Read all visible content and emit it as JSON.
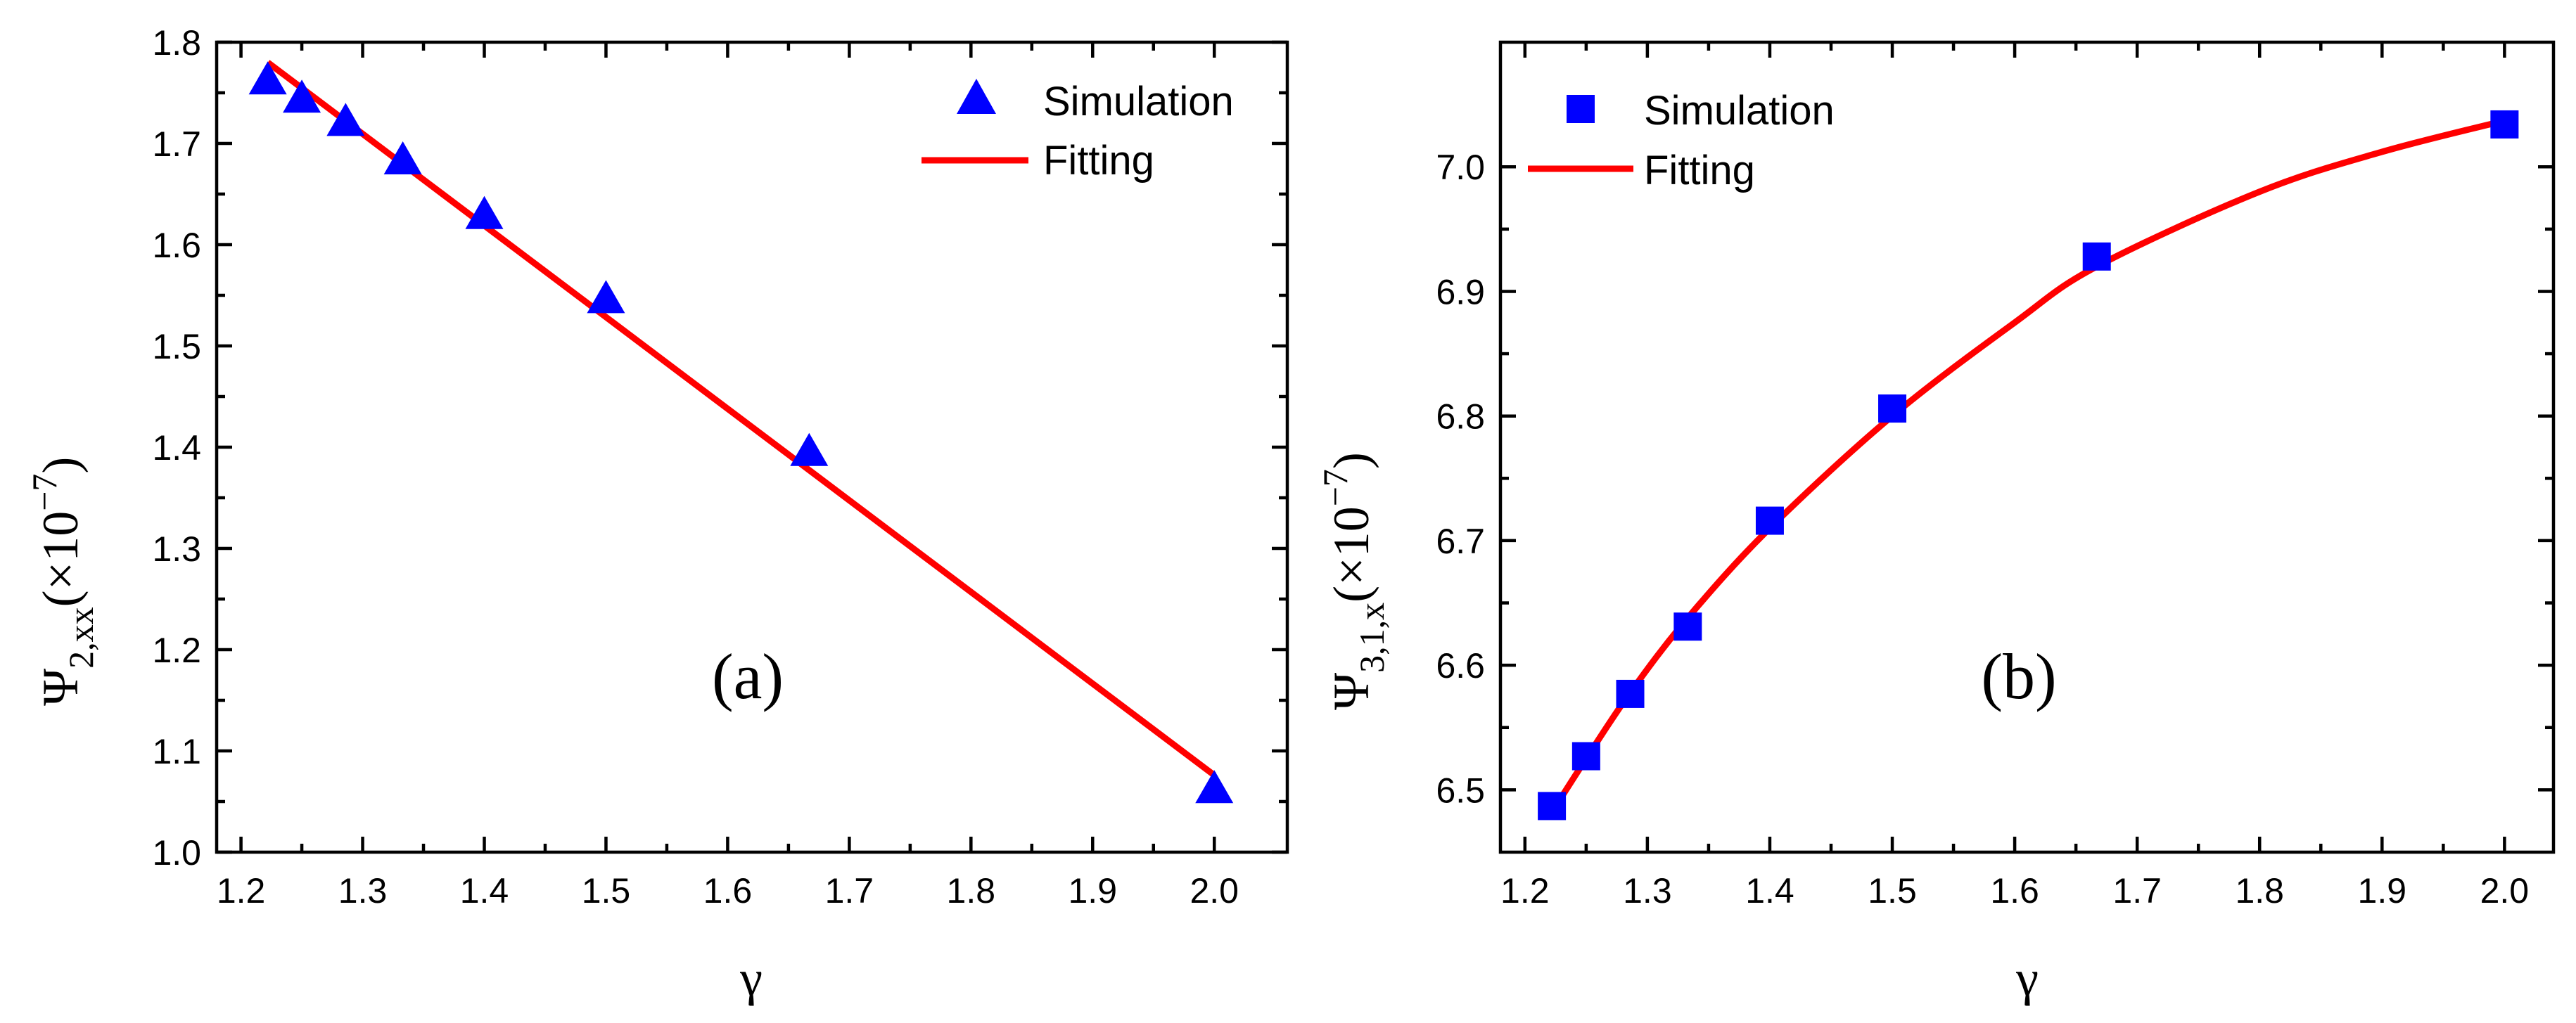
{
  "colors": {
    "marker": "#0000ff",
    "fit": "#ff0000",
    "axes": "#000000"
  },
  "chart_data": [
    {
      "type": "scatter",
      "panel_label": "(a)",
      "xlabel": "γ",
      "ylabel": {
        "main": "Ψ",
        "sub": "2,xx",
        "paren_open": "(×10",
        "exp": "−7",
        "paren_close": ")"
      },
      "xlim": [
        1.18,
        2.06
      ],
      "ylim": [
        1.0,
        1.8
      ],
      "xticks": [
        1.2,
        1.3,
        1.4,
        1.5,
        1.6,
        1.7,
        1.8,
        1.9,
        2.0
      ],
      "xtick_labels": [
        "1.2",
        "1.3",
        "1.4",
        "1.5",
        "1.6",
        "1.7",
        "1.8",
        "1.9",
        "2.0"
      ],
      "yticks": [
        1.0,
        1.1,
        1.2,
        1.3,
        1.4,
        1.5,
        1.6,
        1.7,
        1.8
      ],
      "ytick_labels": [
        "1.0",
        "1.1",
        "1.2",
        "1.3",
        "1.4",
        "1.5",
        "1.6",
        "1.7",
        "1.8"
      ],
      "legend": {
        "placement": "top-right",
        "entries": [
          "Simulation",
          "Fitting"
        ]
      },
      "grid": false,
      "series": [
        {
          "name": "Simulation",
          "kind": "marker",
          "marker": "triangle",
          "x": [
            1.222,
            1.25,
            1.286,
            1.333,
            1.4,
            1.5,
            1.667,
            2.0
          ],
          "y": [
            1.763,
            1.745,
            1.722,
            1.684,
            1.63,
            1.547,
            1.396,
            1.063
          ]
        },
        {
          "name": "Fitting",
          "kind": "line",
          "x": [
            1.222,
            2.0
          ],
          "y": [
            1.78,
            1.076
          ]
        }
      ]
    },
    {
      "type": "scatter",
      "panel_label": "(b)",
      "xlabel": "γ",
      "ylabel": {
        "main": "Ψ",
        "sub": "3,1,x",
        "paren_open": "(×10",
        "exp": "−7",
        "paren_close": ")"
      },
      "xlim": [
        1.18,
        2.04
      ],
      "ylim": [
        6.45,
        7.1
      ],
      "xticks": [
        1.2,
        1.3,
        1.4,
        1.5,
        1.6,
        1.7,
        1.8,
        1.9,
        2.0
      ],
      "xtick_labels": [
        "1.2",
        "1.3",
        "1.4",
        "1.5",
        "1.6",
        "1.7",
        "1.8",
        "1.9",
        "2.0"
      ],
      "yticks": [
        6.5,
        6.6,
        6.7,
        6.8,
        6.9,
        7.0
      ],
      "ytick_labels": [
        "6.5",
        "6.6",
        "6.7",
        "6.8",
        "6.9",
        "7.0"
      ],
      "legend": {
        "placement": "top-left",
        "entries": [
          "Simulation",
          "Fitting"
        ]
      },
      "grid": false,
      "series": [
        {
          "name": "Simulation",
          "kind": "marker",
          "marker": "square",
          "x": [
            1.222,
            1.25,
            1.286,
            1.333,
            1.4,
            1.5,
            1.667,
            2.0
          ],
          "y": [
            6.487,
            6.527,
            6.577,
            6.631,
            6.716,
            6.806,
            6.928,
            7.034
          ]
        },
        {
          "name": "Fitting",
          "kind": "line",
          "x": [
            1.222,
            1.25,
            1.286,
            1.333,
            1.4,
            1.5,
            1.6,
            1.667,
            1.8,
            1.9,
            2.0
          ],
          "y": [
            6.482,
            6.525,
            6.578,
            6.638,
            6.71,
            6.8,
            6.875,
            6.92,
            6.98,
            7.012,
            7.037
          ]
        }
      ]
    }
  ]
}
